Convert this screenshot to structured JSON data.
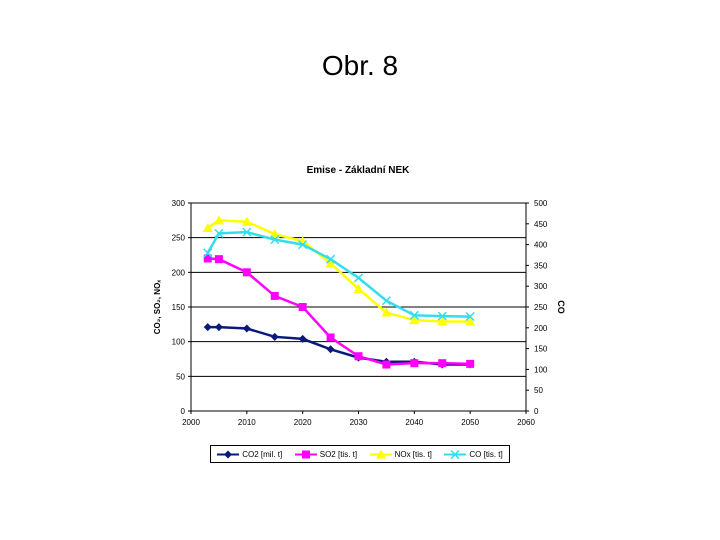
{
  "slide": {
    "title": "Obr. 8"
  },
  "chart_data": {
    "type": "line",
    "title": "Emise - Základní NEK",
    "ylabel_left": "CO₂, SO₂, NOₓ",
    "ylabel_right": "CO",
    "xlim": [
      2000,
      2060
    ],
    "ylim_left": [
      0,
      300
    ],
    "ylim_right": [
      0,
      500
    ],
    "x_ticks": [
      "2000",
      "2010",
      "2020",
      "2030",
      "2040",
      "2050",
      "2060"
    ],
    "y_ticks_left": [
      "0",
      "50",
      "100",
      "150",
      "200",
      "250",
      "300"
    ],
    "y_ticks_right": [
      "0",
      "50",
      "100",
      "150",
      "200",
      "250",
      "300",
      "350",
      "400",
      "450",
      "500"
    ],
    "grid": "horizontal",
    "legend_position": "bottom",
    "series": [
      {
        "name": "CO2 [mil. t]",
        "axis": "left",
        "color": "#0a1a7a",
        "marker": "diamond",
        "x": [
          2003,
          2005,
          2010,
          2015,
          2020,
          2025,
          2030,
          2035,
          2040,
          2045,
          2050
        ],
        "values": [
          121,
          121,
          119,
          107,
          104,
          89,
          77,
          71,
          71,
          67,
          67
        ]
      },
      {
        "name": "SO2 [tis. t]",
        "axis": "left",
        "color": "#ff00ff",
        "marker": "square",
        "x": [
          2003,
          2005,
          2010,
          2015,
          2020,
          2025,
          2030,
          2035,
          2040,
          2045,
          2050
        ],
        "values": [
          220,
          219,
          200,
          166,
          150,
          106,
          79,
          67,
          69,
          69,
          68
        ]
      },
      {
        "name": "NOx [tis. t]",
        "axis": "left",
        "color": "#ffff00",
        "marker": "triangle",
        "x": [
          2003,
          2005,
          2010,
          2015,
          2020,
          2025,
          2030,
          2035,
          2040,
          2045,
          2050
        ],
        "values": [
          264,
          275,
          273,
          255,
          245,
          213,
          176,
          142,
          131,
          129,
          129
        ]
      },
      {
        "name": "CO [tis. t]",
        "axis": "right",
        "color": "#33ddee",
        "marker": "x",
        "x": [
          2003,
          2005,
          2010,
          2015,
          2020,
          2025,
          2030,
          2035,
          2040,
          2045,
          2050
        ],
        "values": [
          380,
          427,
          430,
          412,
          400,
          365,
          320,
          265,
          230,
          228,
          227
        ]
      }
    ]
  }
}
